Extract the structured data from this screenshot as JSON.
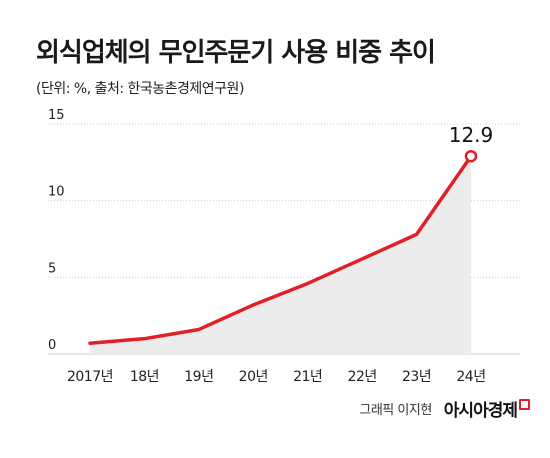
{
  "header": {
    "title": "외식업체의 무인주문기 사용 비중 추이",
    "subtitle": "(단위: %, 출처: 한국농촌경제연구원)"
  },
  "credit": {
    "author": "그래픽 이지현",
    "brand": "아시아경제"
  },
  "colors": {
    "line": "#e31f26",
    "area": "#ececec",
    "axis": "#cfcfcf"
  },
  "chart_data": {
    "type": "area",
    "title": "외식업체의 무인주문기 사용 비중 추이",
    "subtitle": "(단위: %, 출처: 한국농촌경제연구원)",
    "categories": [
      "2017년",
      "18년",
      "19년",
      "20년",
      "21년",
      "22년",
      "23년",
      "24년"
    ],
    "series": [
      {
        "values": [
          0.7,
          1.0,
          1.6,
          3.2,
          4.6,
          6.2,
          7.8,
          12.9
        ]
      }
    ],
    "ylim": [
      0,
      15
    ],
    "yticks": [
      0,
      5,
      10,
      15
    ],
    "annotation": {
      "category": "24년",
      "label": "12.9"
    },
    "grid": true,
    "legend": "none"
  }
}
